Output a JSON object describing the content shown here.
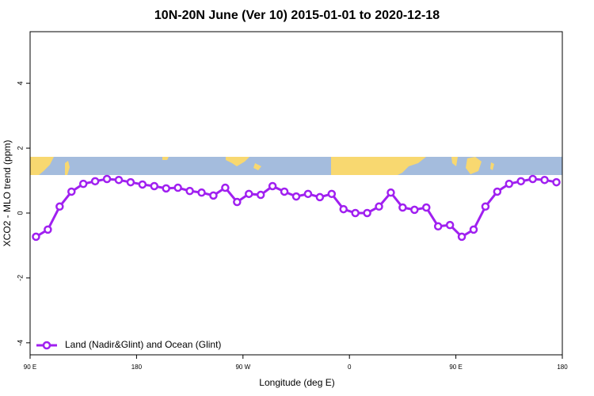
{
  "chart_data": {
    "type": "line",
    "title": "10N-20N June (Ver 10)   2015-01-01 to 2020-12-18",
    "xlabel": "Longitude (deg E)",
    "ylabel": "XCO2 - MLO trend (ppm)",
    "x": [
      95,
      105,
      115,
      125,
      135,
      145,
      155,
      165,
      175,
      185,
      195,
      205,
      215,
      225,
      235,
      245,
      255,
      265,
      275,
      285,
      295,
      305,
      315,
      325,
      335,
      345,
      355,
      365,
      375,
      385,
      395,
      405,
      415,
      425,
      435,
      445,
      455,
      465,
      475,
      485,
      495,
      505,
      515,
      525,
      535
    ],
    "series": [
      {
        "name": "Land (Nadir&Glint) and Ocean (Glint)",
        "color": "#a020f0",
        "values": [
          -0.73,
          -0.51,
          0.2,
          0.66,
          0.9,
          0.98,
          1.05,
          1.02,
          0.95,
          0.88,
          0.83,
          0.76,
          0.78,
          0.68,
          0.63,
          0.54,
          0.78,
          0.34,
          0.59,
          0.56,
          0.83,
          0.66,
          0.51,
          0.59,
          0.49,
          0.59,
          0.12,
          0.0,
          0.0,
          0.2,
          0.63,
          0.17,
          0.1,
          0.17,
          -0.41,
          -0.37,
          -0.73,
          -0.51,
          0.2,
          0.66,
          0.9,
          0.98,
          1.05,
          1.02,
          0.95
        ]
      }
    ],
    "xlim": [
      90,
      540
    ],
    "xticks": [
      {
        "value": 90,
        "label": "90 E"
      },
      180,
      {
        "value": 270,
        "label": "90 W"
      },
      {
        "value": 360,
        "label": "0"
      },
      {
        "value": 450,
        "label": "90 E"
      },
      {
        "value": 540,
        "label": "180"
      }
    ],
    "ylim": [
      -4.37,
      5.59
    ],
    "yticks": [
      -4,
      -2,
      0,
      2,
      4
    ],
    "legend": "bottom-left"
  }
}
